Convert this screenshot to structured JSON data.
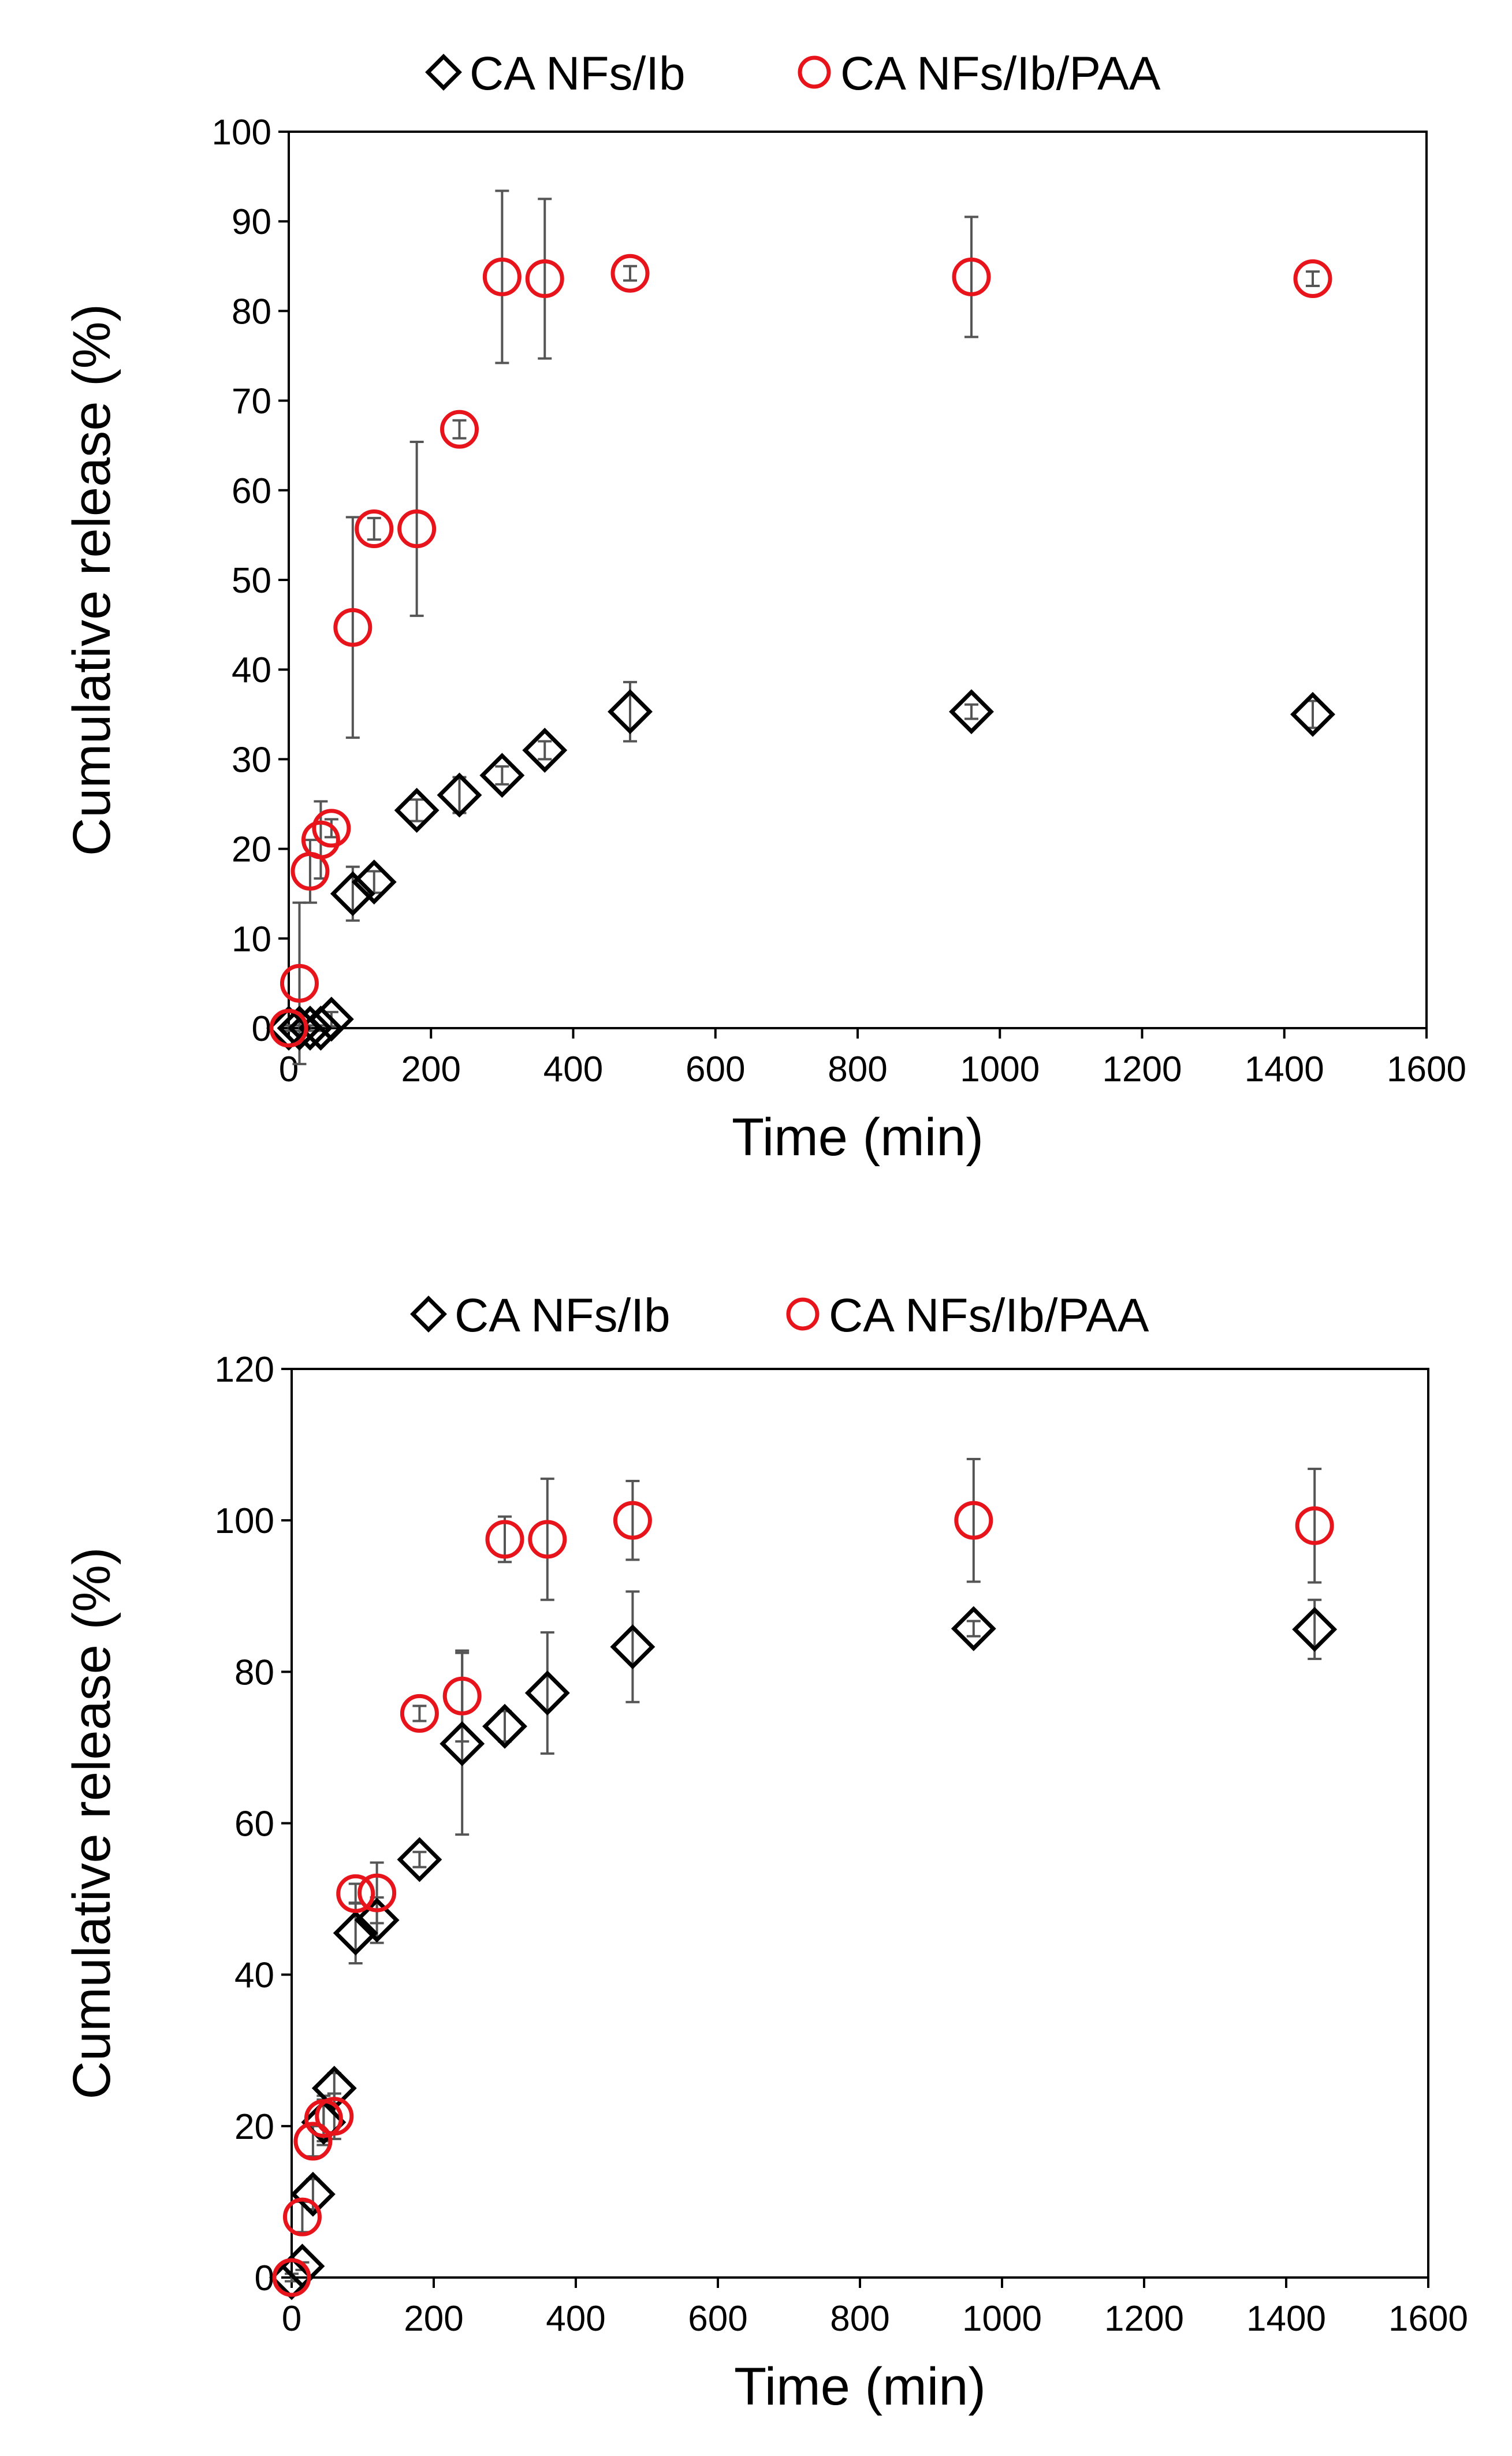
{
  "chart_data": [
    {
      "type": "scatter",
      "title": "",
      "xlabel": "Time (min)",
      "ylabel": "Cumulative release (%)",
      "xlim": [
        0,
        1600
      ],
      "ylim": [
        0,
        100
      ],
      "xticks": [
        0,
        200,
        400,
        600,
        800,
        1000,
        1200,
        1400,
        1600
      ],
      "yticks": [
        0,
        10,
        20,
        30,
        40,
        50,
        60,
        70,
        80,
        90,
        100
      ],
      "grid": false,
      "legend_position": "top-center",
      "series": [
        {
          "name": "CA NFs/Ib",
          "marker": "diamond",
          "color": "#000000",
          "points": [
            {
              "x": 0,
              "y": 0,
              "err": 0.3
            },
            {
              "x": 15,
              "y": 0,
              "err": 0.3
            },
            {
              "x": 30,
              "y": 0,
              "err": 0.3
            },
            {
              "x": 45,
              "y": 0,
              "err": 0.3
            },
            {
              "x": 60,
              "y": 1,
              "err": 0.8
            },
            {
              "x": 90,
              "y": 15,
              "err": 3
            },
            {
              "x": 120,
              "y": 16.3,
              "err": 1.2
            },
            {
              "x": 180,
              "y": 24.3,
              "err": 1.2
            },
            {
              "x": 240,
              "y": 26,
              "err": 2
            },
            {
              "x": 300,
              "y": 28.2,
              "err": 1
            },
            {
              "x": 360,
              "y": 31,
              "err": 1
            },
            {
              "x": 480,
              "y": 35.3,
              "err": 3.3
            },
            {
              "x": 960,
              "y": 35.3,
              "err": 0.8
            },
            {
              "x": 1440,
              "y": 35,
              "err": 1.5
            }
          ]
        },
        {
          "name": "CA NFs/Ib/PAA",
          "marker": "circle",
          "color": "#e8141c",
          "points": [
            {
              "x": 0,
              "y": 0,
              "err": 0.3
            },
            {
              "x": 15,
              "y": 5,
              "err": 9
            },
            {
              "x": 30,
              "y": 17.5,
              "err": 3.5
            },
            {
              "x": 45,
              "y": 21,
              "err": 4.3
            },
            {
              "x": 60,
              "y": 22.3,
              "err": 1
            },
            {
              "x": 90,
              "y": 44.7,
              "err": 12.3
            },
            {
              "x": 120,
              "y": 55.7,
              "err": 1.2
            },
            {
              "x": 180,
              "y": 55.7,
              "err": 9.7
            },
            {
              "x": 240,
              "y": 66.8,
              "err": 1
            },
            {
              "x": 300,
              "y": 83.8,
              "err": 9.6
            },
            {
              "x": 360,
              "y": 83.6,
              "err": 8.9
            },
            {
              "x": 480,
              "y": 84.2,
              "err": 0.8
            },
            {
              "x": 960,
              "y": 83.8,
              "err": 6.7
            },
            {
              "x": 1440,
              "y": 83.6,
              "err": 0.8
            }
          ]
        }
      ]
    },
    {
      "type": "scatter",
      "title": "",
      "xlabel": "Time (min)",
      "ylabel": "Cumulative release (%)",
      "xlim": [
        0,
        1600
      ],
      "ylim": [
        0,
        120
      ],
      "xticks": [
        0,
        200,
        400,
        600,
        800,
        1000,
        1200,
        1400,
        1600
      ],
      "yticks": [
        0,
        20,
        40,
        60,
        80,
        100,
        120
      ],
      "grid": false,
      "legend_position": "top-center",
      "series": [
        {
          "name": "CA NFs/Ib",
          "marker": "diamond",
          "color": "#000000",
          "points": [
            {
              "x": 0,
              "y": 0,
              "err": 0.5
            },
            {
              "x": 15,
              "y": 1.5,
              "err": 0.5
            },
            {
              "x": 30,
              "y": 11,
              "err": 2
            },
            {
              "x": 45,
              "y": 20.5,
              "err": 3
            },
            {
              "x": 60,
              "y": 25,
              "err": 2
            },
            {
              "x": 90,
              "y": 45.5,
              "err": 4
            },
            {
              "x": 120,
              "y": 47.2,
              "err": 3
            },
            {
              "x": 180,
              "y": 55.2,
              "err": 1
            },
            {
              "x": 240,
              "y": 70.5,
              "err": 12
            },
            {
              "x": 300,
              "y": 72.8,
              "err": 2
            },
            {
              "x": 360,
              "y": 77.2,
              "err": 8
            },
            {
              "x": 480,
              "y": 83.3,
              "err": 7.3
            },
            {
              "x": 960,
              "y": 85.7,
              "err": 1
            },
            {
              "x": 1440,
              "y": 85.6,
              "err": 3.9
            }
          ]
        },
        {
          "name": "CA NFs/Ib/PAA",
          "marker": "circle",
          "color": "#e8141c",
          "points": [
            {
              "x": 0,
              "y": 0,
              "err": 0.5
            },
            {
              "x": 15,
              "y": 8,
              "err": 2
            },
            {
              "x": 30,
              "y": 18,
              "err": 2
            },
            {
              "x": 45,
              "y": 21,
              "err": 3
            },
            {
              "x": 60,
              "y": 21.3,
              "err": 3
            },
            {
              "x": 90,
              "y": 50.7,
              "err": 1.3
            },
            {
              "x": 120,
              "y": 50.8,
              "err": 4
            },
            {
              "x": 180,
              "y": 74.5,
              "err": 1
            },
            {
              "x": 240,
              "y": 76.8,
              "err": 6
            },
            {
              "x": 300,
              "y": 97.5,
              "err": 3
            },
            {
              "x": 360,
              "y": 97.5,
              "err": 8
            },
            {
              "x": 480,
              "y": 100,
              "err": 5.2
            },
            {
              "x": 960,
              "y": 100,
              "err": 8.1
            },
            {
              "x": 1440,
              "y": 99.3,
              "err": 7.5
            }
          ]
        }
      ]
    }
  ]
}
